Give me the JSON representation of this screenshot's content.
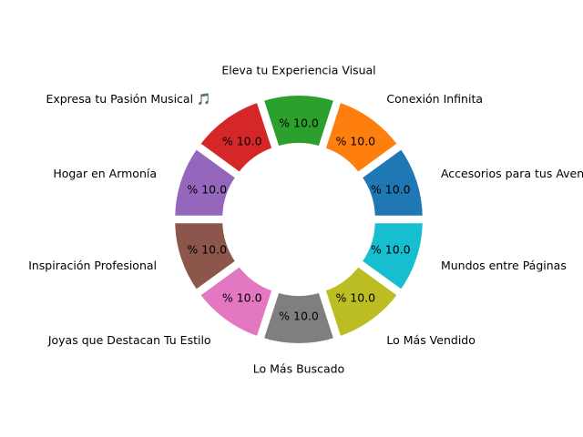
{
  "chart_data": {
    "type": "pie",
    "style": "donut",
    "exploded": true,
    "categories": [
      "Accesorios para tus Aventuras",
      "Conexión Infinita",
      "Eleva tu Experiencia Visual",
      "Expresa tu Pasión Musical 🎵",
      "Hogar en Armonía",
      "Inspiración Profesional",
      "Joyas que Destacan Tu Estilo",
      "Lo Más Buscado",
      "Lo Más Vendido",
      "Mundos entre Páginas"
    ],
    "values": [
      10,
      10,
      10,
      10,
      10,
      10,
      10,
      10,
      10,
      10
    ],
    "value_labels": [
      "% 10.0",
      "% 10.0",
      "% 10.0",
      "% 10.0",
      "% 10.0",
      "% 10.0",
      "% 10.0",
      "% 10.0",
      "% 10.0",
      "% 10.0"
    ],
    "colors": [
      "#1f77b4",
      "#ff7f0e",
      "#2ca02c",
      "#d62728",
      "#9467bd",
      "#8c564b",
      "#e377c2",
      "#7f7f7f",
      "#bcbd22",
      "#17becf"
    ],
    "start_angle": 0,
    "direction": "counterclockwise"
  }
}
